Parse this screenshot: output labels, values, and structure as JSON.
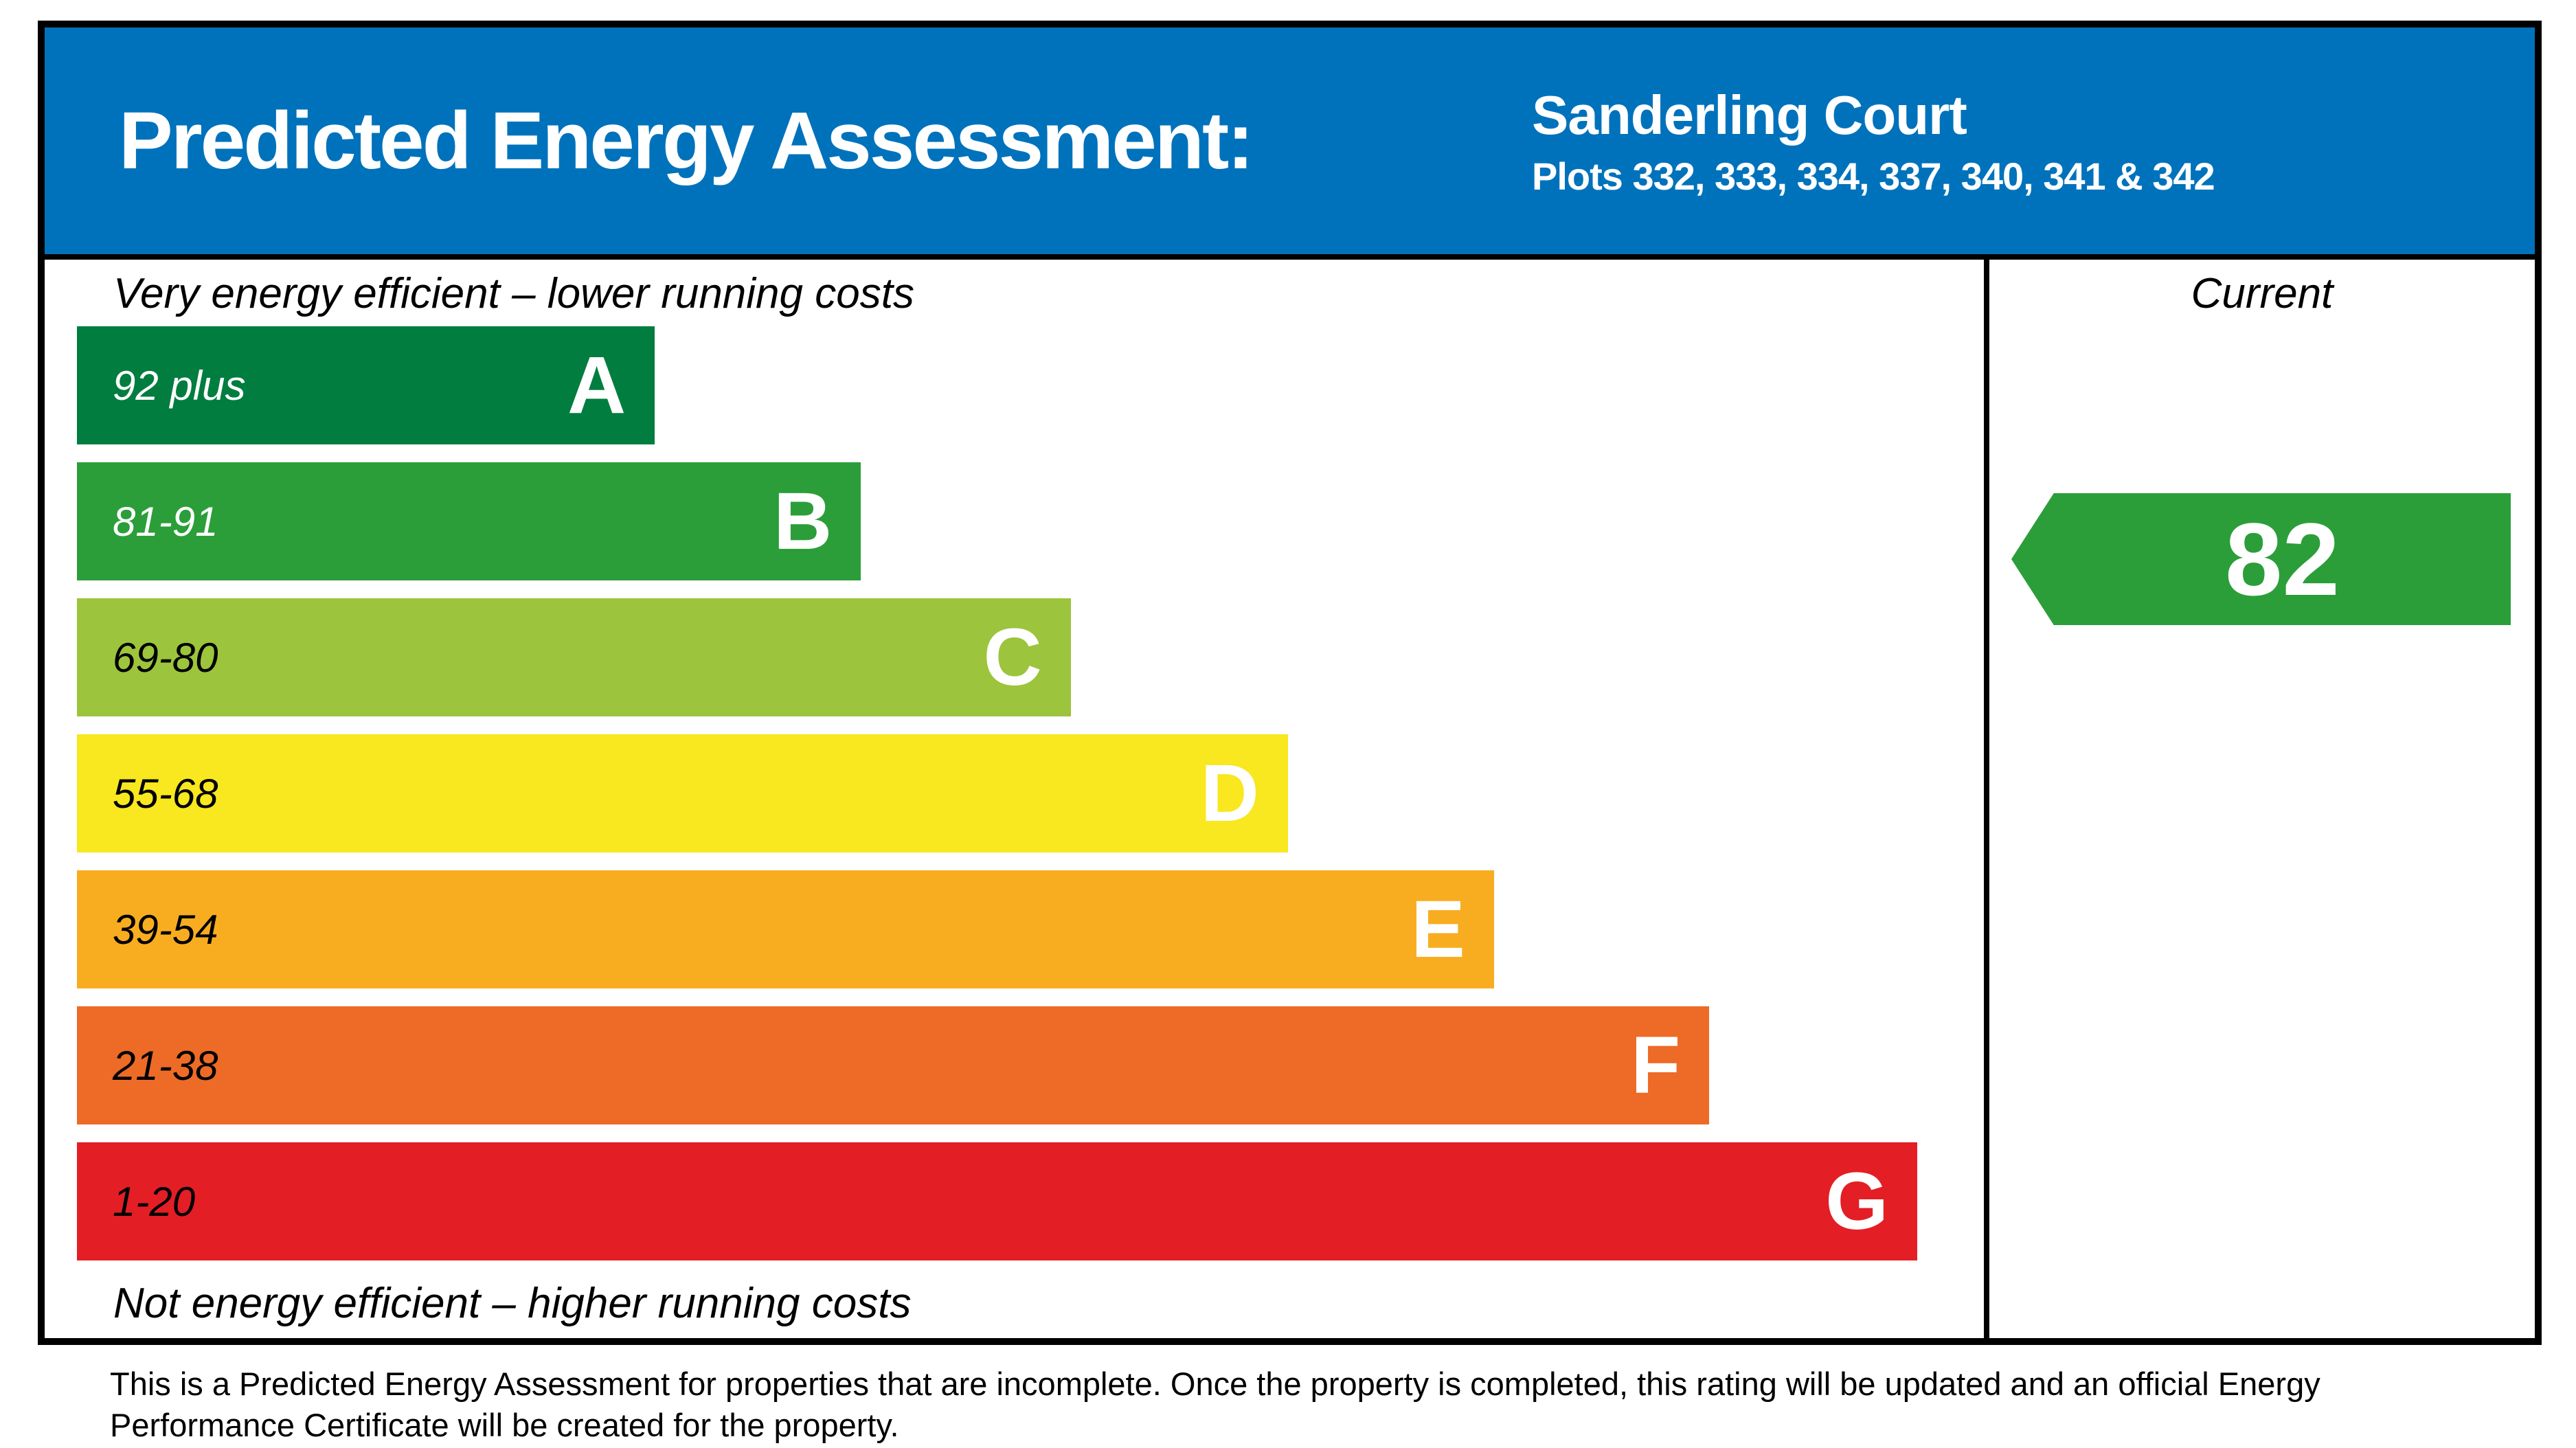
{
  "header": {
    "title": "Predicted Energy Assessment:",
    "property_name": "Sanderling Court",
    "property_plots": "Plots 332, 333, 334, 337, 340, 341 & 342",
    "background_color": "#0072bc"
  },
  "chart_data": {
    "type": "bar",
    "title": "Predicted Energy Assessment",
    "top_caption": "Very energy efficient – lower running costs",
    "bottom_caption": "Not energy efficient – higher running costs",
    "column_header": "Current",
    "legend_position": "none",
    "grid": false,
    "bands": [
      {
        "letter": "A",
        "range_label": "92 plus",
        "min": 92,
        "max": 100,
        "color": "#007d3f",
        "range_text_color": "#ffffff",
        "width_pct": 31.4
      },
      {
        "letter": "B",
        "range_label": "81-91",
        "min": 81,
        "max": 91,
        "color": "#2b9e39",
        "range_text_color": "#ffffff",
        "width_pct": 42.6
      },
      {
        "letter": "C",
        "range_label": "69-80",
        "min": 69,
        "max": 80,
        "color": "#9cc43c",
        "range_text_color": "#000000",
        "width_pct": 54.0
      },
      {
        "letter": "D",
        "range_label": "55-68",
        "min": 55,
        "max": 68,
        "color": "#f9e71f",
        "range_text_color": "#000000",
        "width_pct": 65.8
      },
      {
        "letter": "E",
        "range_label": "39-54",
        "min": 39,
        "max": 54,
        "color": "#f8ad20",
        "range_text_color": "#000000",
        "width_pct": 77.0
      },
      {
        "letter": "F",
        "range_label": "21-38",
        "min": 21,
        "max": 38,
        "color": "#ed6b26",
        "range_text_color": "#000000",
        "width_pct": 88.7
      },
      {
        "letter": "G",
        "range_label": "1-20",
        "min": 1,
        "max": 20,
        "color": "#e41e25",
        "range_text_color": "#000000",
        "width_pct": 100
      }
    ],
    "current": {
      "value": "82",
      "band": "B",
      "color": "#2b9e39"
    }
  },
  "footer": {
    "text": "This is a Predicted Energy Assessment for properties that are incomplete. Once the property is completed, this rating will be updated and an official Energy Performance Certificate will be created for the property."
  }
}
